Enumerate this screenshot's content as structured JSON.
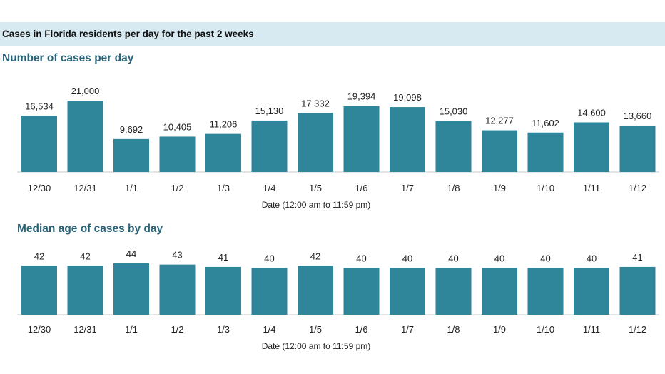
{
  "header": {
    "title": "Cases in Florida residents per day for the past 2 weeks"
  },
  "chart_data": [
    {
      "type": "bar",
      "title": "Number of cases per day",
      "xlabel": "Date (12:00 am to 11:59 pm)",
      "ylabel": "",
      "categories": [
        "12/30",
        "12/31",
        "1/1",
        "1/2",
        "1/3",
        "1/4",
        "1/5",
        "1/6",
        "1/7",
        "1/8",
        "1/9",
        "1/10",
        "1/11",
        "1/12"
      ],
      "values": [
        16534,
        21000,
        9692,
        10405,
        11206,
        15130,
        17332,
        19394,
        19098,
        15030,
        12277,
        11602,
        14600,
        13660
      ],
      "value_labels": [
        "16,534",
        "21,000",
        "9,692",
        "10,405",
        "11,206",
        "15,130",
        "17,332",
        "19,394",
        "19,098",
        "15,030",
        "12,277",
        "11,602",
        "14,600",
        "13,660"
      ],
      "ylim": [
        0,
        21000
      ],
      "grid": false,
      "color": "#2f869b"
    },
    {
      "type": "bar",
      "title": "Median age of cases by day",
      "xlabel": "Date (12:00 am to 11:59 pm)",
      "ylabel": "",
      "categories": [
        "12/30",
        "12/31",
        "1/1",
        "1/2",
        "1/3",
        "1/4",
        "1/5",
        "1/6",
        "1/7",
        "1/8",
        "1/9",
        "1/10",
        "1/11",
        "1/12"
      ],
      "values": [
        42,
        42,
        44,
        43,
        41,
        40,
        42,
        40,
        40,
        40,
        40,
        40,
        40,
        41
      ],
      "value_labels": [
        "42",
        "42",
        "44",
        "43",
        "41",
        "40",
        "42",
        "40",
        "40",
        "40",
        "40",
        "40",
        "40",
        "41"
      ],
      "ylim": [
        0,
        44
      ],
      "grid": false,
      "color": "#2f869b"
    }
  ]
}
